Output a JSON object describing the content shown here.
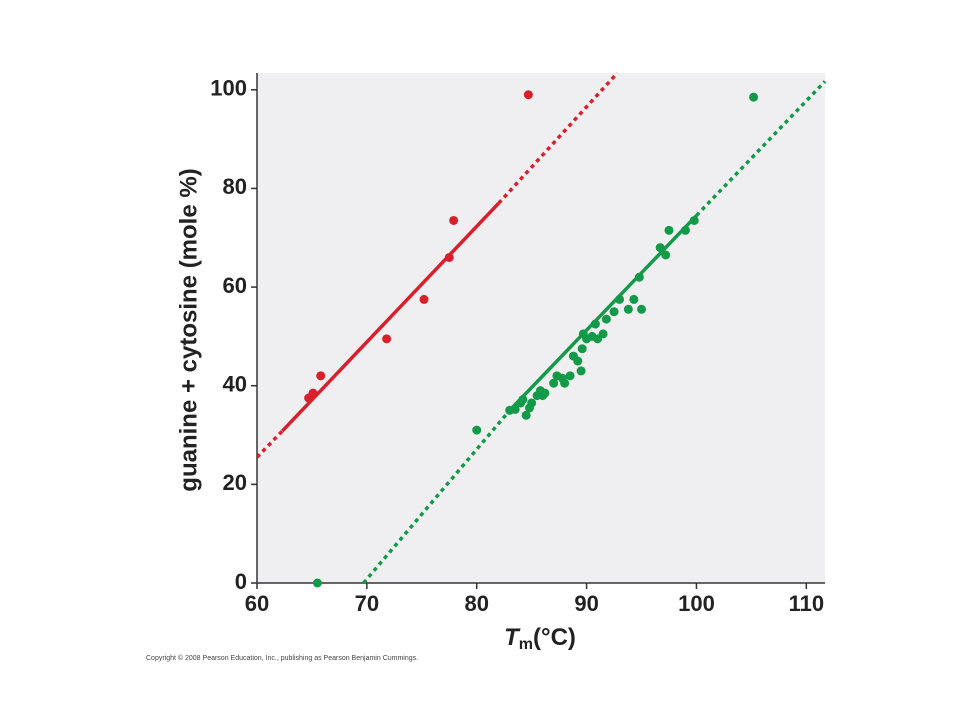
{
  "chart_data": {
    "type": "scatter",
    "x_label": "T",
    "x_label_sub": "m",
    "x_label_rest": "(°C)",
    "y_label": "guanine + cytosine (mole %)",
    "footnote": "Copyright © 2008 Pearson Education, Inc., publishing as Pearson Benjamin Cummings.",
    "xlim": [
      60,
      111.7
    ],
    "xticks": [
      60,
      70,
      80,
      90,
      100,
      110
    ],
    "ylim": [
      0,
      103.4
    ],
    "yticks": [
      0,
      20,
      40,
      60,
      80,
      100
    ],
    "series": [
      {
        "color": "#d9202a",
        "x": [
          64.7,
          65.1,
          65.8,
          71.8,
          75.2,
          77.5,
          77.9,
          84.7
        ],
        "values": [
          37.5,
          38.5,
          42,
          49.5,
          57.5,
          66,
          73.5,
          99
        ],
        "fit": [
          {
            "x": [
              60,
              62.3
            ],
            "y": [
              25.5,
              30.8
            ],
            "dotted": true
          },
          {
            "x": [
              62.3,
              82
            ],
            "y": [
              30.8,
              77
            ],
            "dotted": false
          },
          {
            "x": [
              82,
              92.8
            ],
            "y": [
              77,
              103.4
            ],
            "dotted": true
          }
        ]
      },
      {
        "color": "#139a48",
        "x": [
          65.5,
          80,
          83,
          83.5,
          84,
          84.2,
          84.5,
          84.8,
          85,
          85.5,
          85.8,
          86,
          86.2,
          87,
          87.3,
          87.8,
          88,
          88.5,
          88.8,
          89.2,
          89.5,
          89.6,
          89.7,
          90,
          90.5,
          90.8,
          91,
          91.5,
          91.8,
          92.5,
          93,
          93.8,
          94.3,
          94.8,
          95,
          96.7,
          97.2,
          97.5,
          99,
          99.8,
          105.2
        ],
        "values": [
          0,
          31,
          35,
          35.2,
          36.5,
          37.2,
          34,
          35.5,
          36.5,
          38,
          39,
          38,
          38.5,
          40.5,
          42,
          41.5,
          40.5,
          42,
          46,
          45,
          43,
          47.5,
          50.5,
          49.5,
          50,
          52.5,
          49.5,
          50.5,
          53.5,
          55,
          57.5,
          55.5,
          57.5,
          62,
          55.5,
          68,
          66.5,
          71.5,
          71.5,
          73.5,
          98.5
        ],
        "fit": [
          {
            "x": [
              69.7,
              83
            ],
            "y": [
              0,
              35
            ],
            "dotted": true
          },
          {
            "x": [
              83,
              100
            ],
            "y": [
              35,
              74.5
            ],
            "dotted": false
          },
          {
            "x": [
              100,
              111.7
            ],
            "y": [
              74.5,
              101.7
            ],
            "dotted": true
          }
        ]
      }
    ]
  }
}
